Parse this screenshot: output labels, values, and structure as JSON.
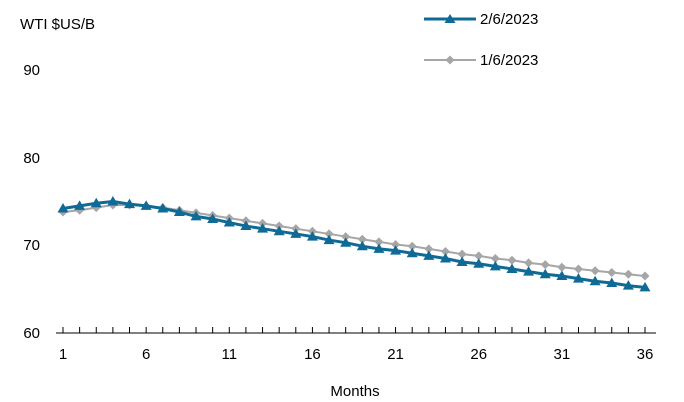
{
  "chart_data": {
    "type": "line",
    "ylabel": "WTI $US/B",
    "xlabel": "Months",
    "ylim": [
      60,
      90
    ],
    "yticks": [
      60,
      70,
      80,
      90
    ],
    "xlim": [
      1,
      36
    ],
    "xtick_labels": [
      1,
      6,
      11,
      16,
      21,
      26,
      31,
      36
    ],
    "grid": false,
    "legend_position": "top-right",
    "x": [
      1,
      2,
      3,
      4,
      5,
      6,
      7,
      8,
      9,
      10,
      11,
      12,
      13,
      14,
      15,
      16,
      17,
      18,
      19,
      20,
      21,
      22,
      23,
      24,
      25,
      26,
      27,
      28,
      29,
      30,
      31,
      32,
      33,
      34,
      35,
      36
    ],
    "series": [
      {
        "name": "2/6/2023",
        "color": "#0f6b96",
        "marker": "triangle",
        "values": [
          74.2,
          74.5,
          74.8,
          75.0,
          74.7,
          74.5,
          74.2,
          73.8,
          73.3,
          73.0,
          72.6,
          72.2,
          71.9,
          71.6,
          71.3,
          71.0,
          70.6,
          70.3,
          69.9,
          69.6,
          69.4,
          69.1,
          68.8,
          68.5,
          68.1,
          67.9,
          67.6,
          67.3,
          67.0,
          66.7,
          66.5,
          66.2,
          65.9,
          65.7,
          65.4,
          65.2
        ]
      },
      {
        "name": "1/6/2023",
        "color": "#a6a6a6",
        "marker": "diamond",
        "values": [
          73.8,
          74.0,
          74.3,
          74.6,
          74.6,
          74.5,
          74.3,
          74.0,
          73.7,
          73.4,
          73.1,
          72.8,
          72.5,
          72.2,
          71.9,
          71.6,
          71.3,
          71.0,
          70.7,
          70.4,
          70.1,
          69.9,
          69.6,
          69.3,
          69.0,
          68.8,
          68.5,
          68.3,
          68.0,
          67.8,
          67.5,
          67.3,
          67.1,
          66.9,
          66.7,
          66.5
        ]
      }
    ]
  }
}
